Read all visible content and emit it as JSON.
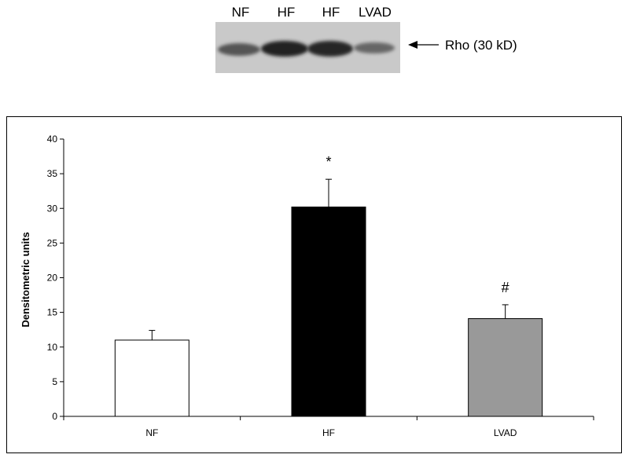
{
  "blot": {
    "lane_labels": [
      "NF",
      "HF",
      "HF",
      "LVAD"
    ],
    "band_label": "Rho (30 kD)"
  },
  "chart_data": {
    "type": "bar",
    "categories": [
      "NF",
      "HF",
      "LVAD"
    ],
    "values": [
      11,
      30.2,
      14.1
    ],
    "errors": [
      1.4,
      4.0,
      2.0
    ],
    "bar_colors": [
      "#ffffff",
      "#000000",
      "#999999"
    ],
    "annotations": [
      "",
      "*",
      "#"
    ],
    "title": "",
    "xlabel": "",
    "ylabel": "Densitometric units",
    "ylim": [
      0,
      40
    ],
    "yticks": [
      0,
      5,
      10,
      15,
      20,
      25,
      30,
      35,
      40
    ],
    "grid": false,
    "legend": "none"
  }
}
